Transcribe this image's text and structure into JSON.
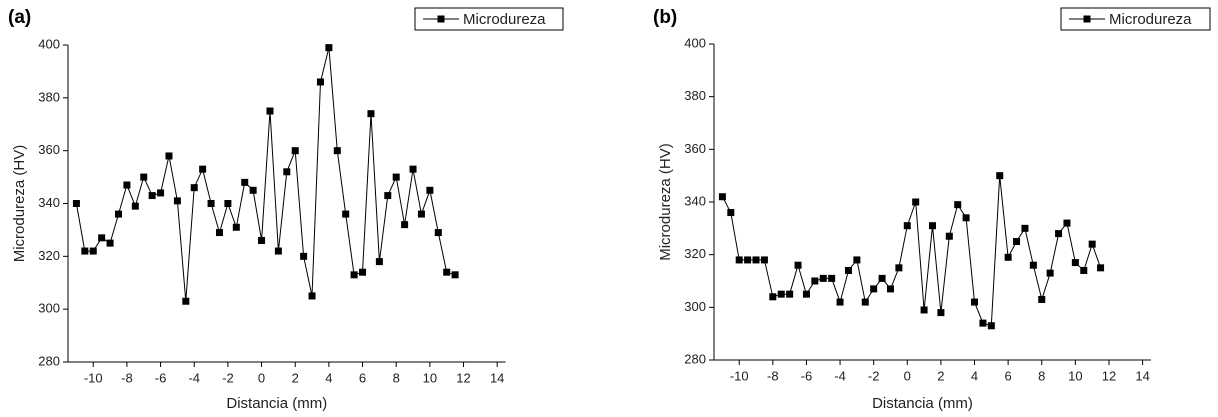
{
  "chart_data": [
    {
      "type": "line",
      "title": "(a)",
      "x_label": "Distancia (mm)",
      "y_label": "Microdureza (HV)",
      "x": [
        -11,
        -10.5,
        -10,
        -9.5,
        -9,
        -8.5,
        -8,
        -7.5,
        -7,
        -6.5,
        -6,
        -5.5,
        -5,
        -4.5,
        -4,
        -3.5,
        -3,
        -2.5,
        -2,
        -1.5,
        -1,
        -0.5,
        0,
        0.5,
        1,
        1.5,
        2,
        2.5,
        3,
        3.5,
        4,
        4.5,
        5,
        5.5,
        6,
        6.5,
        7,
        7.5,
        8,
        8.5,
        9,
        9.5,
        10,
        10.5,
        11,
        11.5
      ],
      "series": [
        {
          "name": "Microdureza",
          "color": "#000000",
          "values": [
            340,
            322,
            322,
            327,
            325,
            336,
            347,
            339,
            350,
            343,
            344,
            358,
            341,
            303,
            346,
            353,
            340,
            329,
            340,
            331,
            348,
            345,
            326,
            375,
            322,
            352,
            360,
            320,
            305,
            386,
            399,
            360,
            336,
            313,
            314,
            374,
            318,
            343,
            350,
            332,
            353,
            336,
            345,
            329,
            314,
            313
          ]
        }
      ],
      "xlim": [
        -11.5,
        14.5
      ],
      "xticks": [
        -10,
        -8,
        -6,
        -4,
        -2,
        0,
        2,
        4,
        6,
        8,
        10,
        12,
        14
      ],
      "ylim": [
        280,
        400
      ],
      "yticks": [
        280,
        300,
        320,
        340,
        360,
        380,
        400
      ],
      "grid": false,
      "legend": "top-right"
    },
    {
      "type": "line",
      "title": "(b)",
      "x_label": "Distancia (mm)",
      "y_label": "Microdureza (HV)",
      "x": [
        -11,
        -10.5,
        -10,
        -9.5,
        -9,
        -8.5,
        -8,
        -7.5,
        -7,
        -6.5,
        -6,
        -5.5,
        -5,
        -4.5,
        -4,
        -3.5,
        -3,
        -2.5,
        -2,
        -1.5,
        -1,
        -0.5,
        0,
        0.5,
        1,
        1.5,
        2,
        2.5,
        3,
        3.5,
        4,
        4.5,
        5,
        5.5,
        6,
        6.5,
        7,
        7.5,
        8,
        8.5,
        9,
        9.5,
        10,
        10.5,
        11,
        11.5
      ],
      "series": [
        {
          "name": "Microdureza",
          "color": "#000000",
          "values": [
            342,
            336,
            318,
            318,
            318,
            318,
            304,
            305,
            305,
            316,
            305,
            310,
            311,
            311,
            302,
            314,
            318,
            302,
            307,
            311,
            307,
            315,
            331,
            340,
            299,
            331,
            298,
            327,
            339,
            334,
            302,
            294,
            293,
            350,
            319,
            325,
            330,
            316,
            303,
            313,
            328,
            332,
            317,
            314,
            324,
            315
          ]
        }
      ],
      "xlim": [
        -11.5,
        14.5
      ],
      "xticks": [
        -10,
        -8,
        -6,
        -4,
        -2,
        0,
        2,
        4,
        6,
        8,
        10,
        12,
        14
      ],
      "ylim": [
        280,
        400
      ],
      "yticks": [
        280,
        300,
        320,
        340,
        360,
        380,
        400
      ],
      "grid": false,
      "legend": "top-right"
    }
  ]
}
